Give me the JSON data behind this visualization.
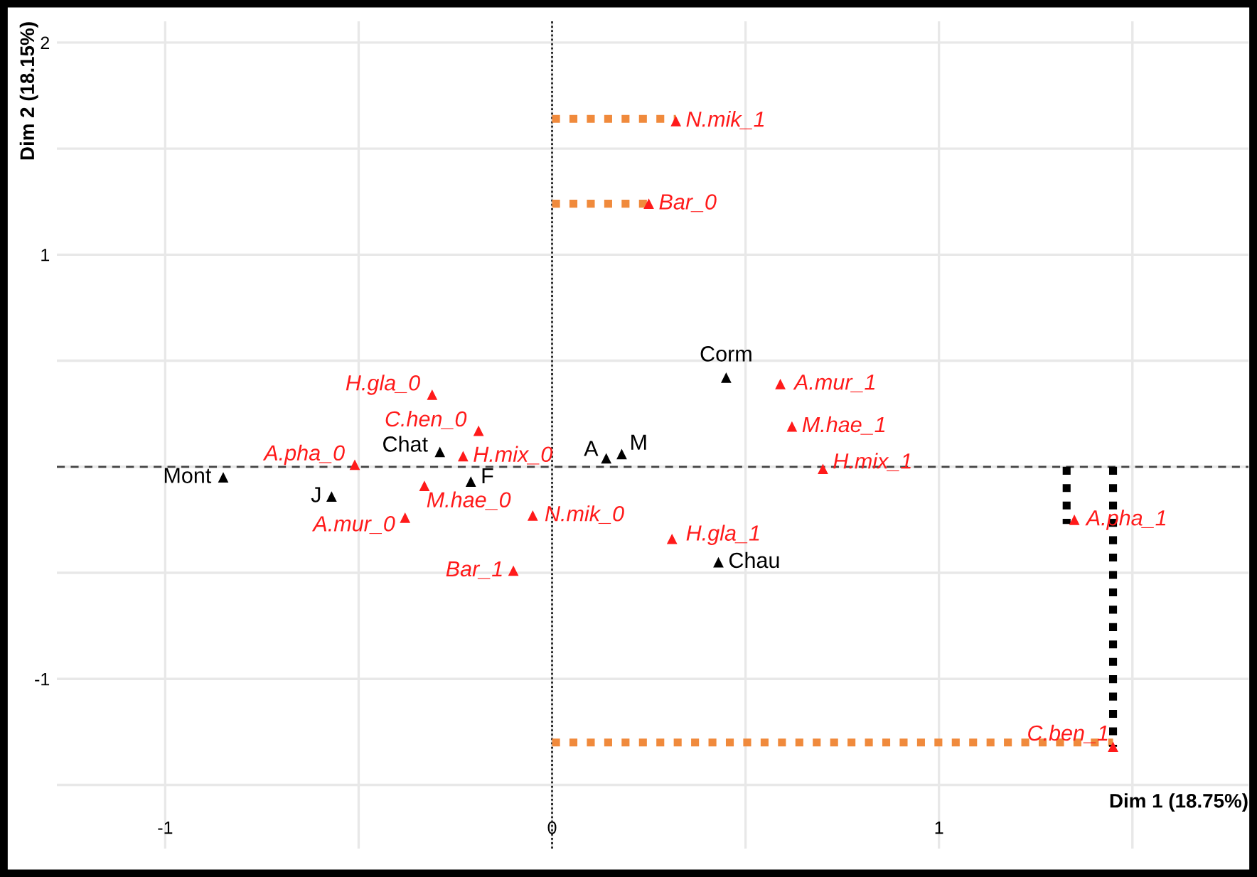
{
  "chart_data": {
    "type": "scatter",
    "xlabel": "Dim 1 (18.75%)",
    "ylabel": "Dim 2 (18.15%)",
    "xlim": [
      -1.28,
      1.8
    ],
    "ylim": [
      -1.8,
      2.1
    ],
    "xticks": [
      -1,
      {
        "value": -0.5,
        "label": null
      },
      0,
      {
        "value": 0.5,
        "label": null
      },
      1,
      {
        "value": 1.5,
        "label": null
      }
    ],
    "yticks": [
      {
        "value": -1.5,
        "label": null
      },
      -1,
      {
        "value": -0.5,
        "label": null
      },
      {
        "value": 0,
        "label": null
      },
      {
        "value": 0.5,
        "label": null
      },
      1,
      {
        "value": 1.5,
        "label": null
      },
      2
    ],
    "grid": true,
    "marker": "triangle",
    "ref_lines": [
      {
        "axis": "x",
        "value": 0,
        "color": "#222222",
        "line_style": "dotted"
      },
      {
        "axis": "y",
        "value": 0,
        "color": "#444444",
        "line_style": "dashed"
      }
    ],
    "series": [
      {
        "type": "line",
        "color": "#f08a3c",
        "line_style": "dotted",
        "marker": "none",
        "x": [
          0,
          0.32
        ],
        "values": [
          1.64,
          1.64
        ]
      },
      {
        "type": "line",
        "color": "#f08a3c",
        "line_style": "dotted",
        "marker": "none",
        "x": [
          0,
          0.25
        ],
        "values": [
          1.24,
          1.24
        ]
      },
      {
        "type": "line",
        "color": "#f08a3c",
        "line_style": "dotted",
        "marker": "none",
        "x": [
          0,
          1.45
        ],
        "values": [
          -1.3,
          -1.3
        ]
      },
      {
        "type": "line",
        "color": "#000000",
        "line_style": "dotted",
        "marker": "none",
        "x": [
          1.33,
          1.33
        ],
        "values": [
          0,
          -0.27
        ]
      },
      {
        "type": "line",
        "color": "#000000",
        "line_style": "dotted",
        "marker": "none",
        "x": [
          1.45,
          1.45
        ],
        "values": [
          0,
          -1.32
        ]
      },
      {
        "color": "#000000",
        "x": [
          -0.85,
          -0.57,
          -0.29,
          -0.21,
          0.14,
          0.18,
          0.45,
          0.43
        ],
        "values": [
          -0.05,
          -0.14,
          0.07,
          -0.07,
          0.04,
          0.06,
          0.42,
          -0.45
        ]
      },
      {
        "color": "#ff1a1a",
        "x": [
          -0.31,
          -0.19,
          -0.23,
          -0.51,
          -0.33,
          -0.38,
          -0.05,
          -0.1,
          0.32,
          0.25,
          0.59,
          0.62,
          0.7,
          0.31,
          1.35,
          1.45
        ],
        "values": [
          0.34,
          0.17,
          0.05,
          0.01,
          -0.09,
          -0.24,
          -0.23,
          -0.49,
          1.63,
          1.24,
          0.39,
          0.19,
          -0.01,
          -0.34,
          -0.25,
          -1.32
        ]
      }
    ],
    "annotations": [
      {
        "text": "Mont",
        "x": -0.85,
        "y": -0.05
      },
      {
        "text": "J",
        "x": -0.57,
        "y": -0.14
      },
      {
        "text": "Chat",
        "x": -0.29,
        "y": 0.07
      },
      {
        "text": "F",
        "x": -0.21,
        "y": -0.07
      },
      {
        "text": "A",
        "x": 0.14,
        "y": 0.04
      },
      {
        "text": "M",
        "x": 0.18,
        "y": 0.06
      },
      {
        "text": "Corm",
        "x": 0.45,
        "y": 0.42
      },
      {
        "text": "Chau",
        "x": 0.43,
        "y": -0.45
      },
      {
        "text": "H.gla_0",
        "x": -0.31,
        "y": 0.34
      },
      {
        "text": "C.hen_0",
        "x": -0.19,
        "y": 0.17
      },
      {
        "text": "H.mix_0",
        "x": -0.23,
        "y": 0.05
      },
      {
        "text": "A.pha_0",
        "x": -0.51,
        "y": 0.01
      },
      {
        "text": "M.hae_0",
        "x": -0.33,
        "y": -0.09
      },
      {
        "text": "A.mur_0",
        "x": -0.38,
        "y": -0.24
      },
      {
        "text": "N.mik_0",
        "x": -0.05,
        "y": -0.23
      },
      {
        "text": "Bar_1",
        "x": -0.1,
        "y": -0.49
      },
      {
        "text": "N.mik_1",
        "x": 0.32,
        "y": 1.63
      },
      {
        "text": "Bar_0",
        "x": 0.25,
        "y": 1.24
      },
      {
        "text": "A.mur_1",
        "x": 0.59,
        "y": 0.39
      },
      {
        "text": "M.hae_1",
        "x": 0.62,
        "y": 0.19
      },
      {
        "text": "H.mix_1",
        "x": 0.7,
        "y": -0.01
      },
      {
        "text": "H.gla_1",
        "x": 0.31,
        "y": -0.34
      },
      {
        "text": "A.pha_1",
        "x": 1.35,
        "y": -0.25
      },
      {
        "text": "C.ben_1",
        "x": 1.45,
        "y": -1.32
      }
    ]
  }
}
